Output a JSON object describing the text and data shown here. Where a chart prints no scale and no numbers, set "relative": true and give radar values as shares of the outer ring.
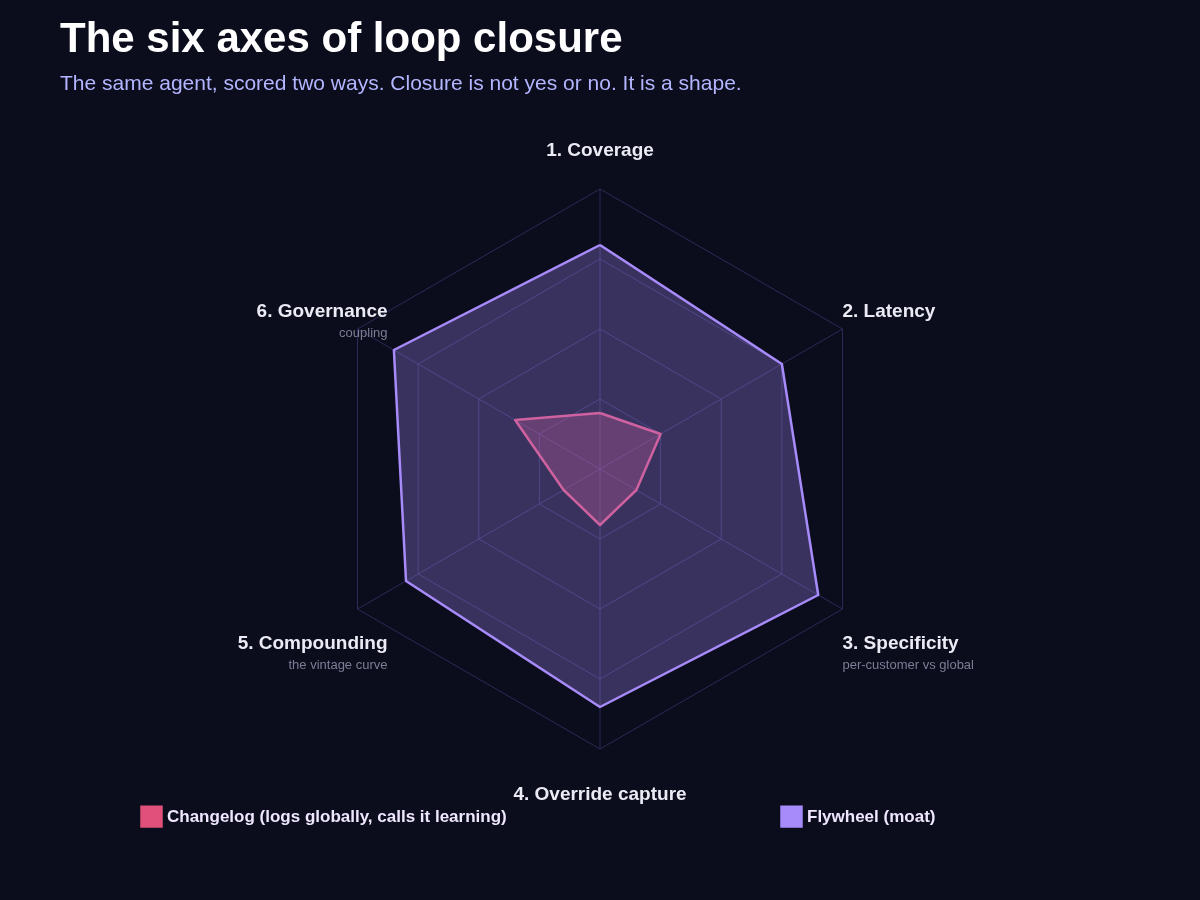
{
  "chart_data": {
    "type": "radar",
    "title": "The six axes of loop closure",
    "subtitle": "The same agent, scored two ways. Closure is not yes or no. It is a shape.",
    "categories": [
      "1. Coverage",
      "2. Latency",
      "3. Specificity",
      "4. Override capture",
      "5. Compounding",
      "6. Governance"
    ],
    "annotations": [
      {
        "text": "per-customer vs global",
        "x": "3. Specificity"
      },
      {
        "text": "the vintage curve",
        "x": "5. Compounding"
      },
      {
        "text": "coupling",
        "x": "6. Governance"
      }
    ],
    "relative": true,
    "grid": true,
    "legend": "bottom",
    "series": [
      {
        "name": "Changelog (logs globally, calls it learning)",
        "color": "#e0507a",
        "values": [
          0.2,
          0.25,
          0.15,
          0.2,
          0.15,
          0.35
        ]
      },
      {
        "name": "Flywheel (moat)",
        "color": "#a78bfa",
        "values": [
          0.8,
          0.75,
          0.9,
          0.85,
          0.8,
          0.85
        ]
      }
    ]
  }
}
